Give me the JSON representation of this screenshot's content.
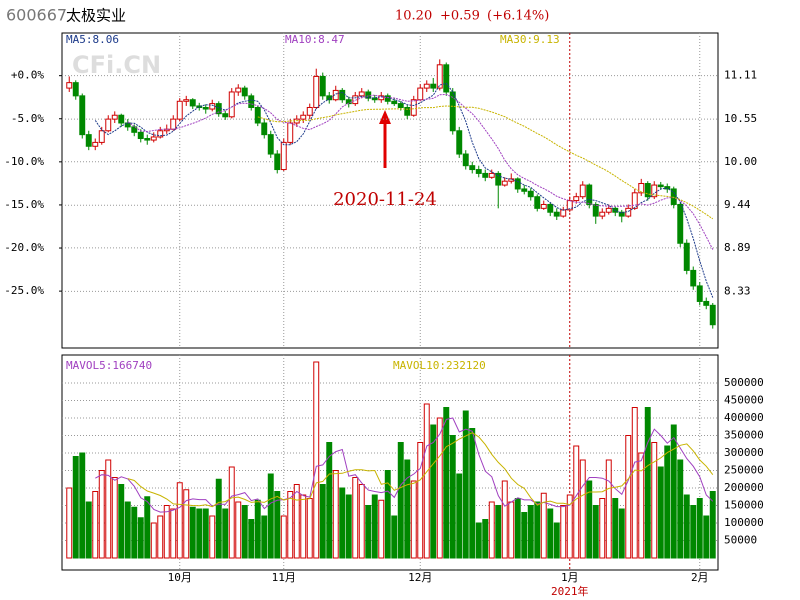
{
  "chart_data": {
    "type": "candlestick",
    "header": {
      "code": "600667",
      "name": "太极实业",
      "price": "10.20",
      "change": "+0.59",
      "change_pct": "(+6.14%)"
    },
    "watermark": "CFi.CN",
    "annotation": "2020-11-24",
    "year_label": "2021年",
    "ma_labels": [
      {
        "text": "MA5:8.06",
        "color": "#1c3a8a"
      },
      {
        "text": "MA10:8.47",
        "color": "#a040c0"
      },
      {
        "text": "MA30:9.13",
        "color": "#c8b400"
      }
    ],
    "up_color": "#d00000",
    "down_color": "#008800",
    "categories": [
      null,
      null,
      null,
      null,
      null,
      null,
      null,
      null,
      null,
      null,
      null,
      null,
      null,
      null,
      null,
      null,
      null,
      "10月",
      null,
      null,
      null,
      null,
      null,
      null,
      null,
      null,
      null,
      null,
      null,
      null,
      null,
      null,
      null,
      "11月",
      null,
      null,
      null,
      null,
      null,
      null,
      null,
      null,
      null,
      null,
      null,
      null,
      null,
      null,
      null,
      null,
      null,
      null,
      null,
      null,
      "12月",
      null,
      null,
      null,
      null,
      null,
      null,
      null,
      null,
      null,
      null,
      null,
      null,
      null,
      null,
      null,
      null,
      null,
      null,
      null,
      null,
      null,
      null,
      "1月",
      null,
      null,
      null,
      null,
      null,
      null,
      null,
      null,
      null,
      null,
      null,
      null,
      null,
      null,
      null,
      null,
      null,
      null,
      null,
      "2月",
      null,
      null
    ],
    "ohlc": [
      [
        10.95,
        11.1,
        10.9,
        11.02
      ],
      [
        11.02,
        11.05,
        10.8,
        10.85
      ],
      [
        10.85,
        10.88,
        10.3,
        10.35
      ],
      [
        10.35,
        10.4,
        10.15,
        10.2
      ],
      [
        10.2,
        10.3,
        10.15,
        10.25
      ],
      [
        10.25,
        10.45,
        10.22,
        10.4
      ],
      [
        10.4,
        10.6,
        10.38,
        10.55
      ],
      [
        10.55,
        10.65,
        10.5,
        10.6
      ],
      [
        10.6,
        10.62,
        10.45,
        10.5
      ],
      [
        10.5,
        10.55,
        10.4,
        10.45
      ],
      [
        10.45,
        10.48,
        10.33,
        10.38
      ],
      [
        10.38,
        10.42,
        10.25,
        10.3
      ],
      [
        10.3,
        10.35,
        10.22,
        10.28
      ],
      [
        10.28,
        10.38,
        10.25,
        10.32
      ],
      [
        10.32,
        10.45,
        10.3,
        10.4
      ],
      [
        10.4,
        10.48,
        10.36,
        10.42
      ],
      [
        10.42,
        10.6,
        10.4,
        10.55
      ],
      [
        10.55,
        10.82,
        10.52,
        10.78
      ],
      [
        10.78,
        10.85,
        10.72,
        10.8
      ],
      [
        10.8,
        10.82,
        10.68,
        10.72
      ],
      [
        10.72,
        10.76,
        10.66,
        10.7
      ],
      [
        10.7,
        10.74,
        10.62,
        10.68
      ],
      [
        10.68,
        10.8,
        10.65,
        10.75
      ],
      [
        10.75,
        10.78,
        10.58,
        10.62
      ],
      [
        10.62,
        10.66,
        10.54,
        10.58
      ],
      [
        10.58,
        10.95,
        10.56,
        10.9
      ],
      [
        10.9,
        11.0,
        10.85,
        10.95
      ],
      [
        10.95,
        10.98,
        10.8,
        10.85
      ],
      [
        10.85,
        10.88,
        10.66,
        10.7
      ],
      [
        10.7,
        10.72,
        10.46,
        10.5
      ],
      [
        10.5,
        10.55,
        10.3,
        10.35
      ],
      [
        10.35,
        10.4,
        10.05,
        10.1
      ],
      [
        10.1,
        10.15,
        9.85,
        9.9
      ],
      [
        9.9,
        10.3,
        9.88,
        10.25
      ],
      [
        10.25,
        10.55,
        10.22,
        10.5
      ],
      [
        10.5,
        10.6,
        10.45,
        10.55
      ],
      [
        10.55,
        10.65,
        10.5,
        10.6
      ],
      [
        10.6,
        10.75,
        10.55,
        10.7
      ],
      [
        10.7,
        11.2,
        10.68,
        11.1
      ],
      [
        11.1,
        11.15,
        10.8,
        10.85
      ],
      [
        10.85,
        10.9,
        10.75,
        10.8
      ],
      [
        10.8,
        10.98,
        10.78,
        10.92
      ],
      [
        10.92,
        10.95,
        10.76,
        10.8
      ],
      [
        10.8,
        10.84,
        10.7,
        10.75
      ],
      [
        10.75,
        10.9,
        10.72,
        10.85
      ],
      [
        10.85,
        10.95,
        10.82,
        10.9
      ],
      [
        10.9,
        10.93,
        10.78,
        10.82
      ],
      [
        10.82,
        10.86,
        10.76,
        10.8
      ],
      [
        10.8,
        10.9,
        10.76,
        10.85
      ],
      [
        10.85,
        10.88,
        10.74,
        10.78
      ],
      [
        10.78,
        10.82,
        10.72,
        10.75
      ],
      [
        10.75,
        10.78,
        10.66,
        10.7
      ],
      [
        10.7,
        10.74,
        10.55,
        10.6
      ],
      [
        10.6,
        10.85,
        10.58,
        10.8
      ],
      [
        10.8,
        11.0,
        10.78,
        10.95
      ],
      [
        10.95,
        11.05,
        10.9,
        11.0
      ],
      [
        11.0,
        11.08,
        10.9,
        10.95
      ],
      [
        10.95,
        11.32,
        10.92,
        11.25
      ],
      [
        11.25,
        11.28,
        10.85,
        10.9
      ],
      [
        10.9,
        10.95,
        10.35,
        10.4
      ],
      [
        10.4,
        10.45,
        10.05,
        10.1
      ],
      [
        10.1,
        10.15,
        9.9,
        9.95
      ],
      [
        9.95,
        10.0,
        9.85,
        9.9
      ],
      [
        9.9,
        9.95,
        9.8,
        9.85
      ],
      [
        9.85,
        9.9,
        9.75,
        9.8
      ],
      [
        9.8,
        9.9,
        9.78,
        9.85
      ],
      [
        9.85,
        9.88,
        9.4,
        9.7
      ],
      [
        9.7,
        9.8,
        9.68,
        9.75
      ],
      [
        9.75,
        9.85,
        9.72,
        9.78
      ],
      [
        9.78,
        9.8,
        9.6,
        9.65
      ],
      [
        9.65,
        9.7,
        9.58,
        9.62
      ],
      [
        9.62,
        9.66,
        9.5,
        9.55
      ],
      [
        9.55,
        9.58,
        9.36,
        9.4
      ],
      [
        9.4,
        9.5,
        9.38,
        9.45
      ],
      [
        9.45,
        9.48,
        9.3,
        9.35
      ],
      [
        9.35,
        9.4,
        9.25,
        9.3
      ],
      [
        9.3,
        9.42,
        9.28,
        9.38
      ],
      [
        9.38,
        9.55,
        9.35,
        9.5
      ],
      [
        9.5,
        9.6,
        9.46,
        9.55
      ],
      [
        9.55,
        9.75,
        9.52,
        9.7
      ],
      [
        9.7,
        9.72,
        9.4,
        9.45
      ],
      [
        9.45,
        9.48,
        9.2,
        9.3
      ],
      [
        9.3,
        9.4,
        9.26,
        9.35
      ],
      [
        9.35,
        9.45,
        9.32,
        9.4
      ],
      [
        9.4,
        9.42,
        9.3,
        9.35
      ],
      [
        9.35,
        9.38,
        9.22,
        9.3
      ],
      [
        9.3,
        9.45,
        9.28,
        9.4
      ],
      [
        9.4,
        9.65,
        9.38,
        9.6
      ],
      [
        9.6,
        9.78,
        9.56,
        9.72
      ],
      [
        9.72,
        9.75,
        9.5,
        9.55
      ],
      [
        9.55,
        9.75,
        9.52,
        9.7
      ],
      [
        9.7,
        9.74,
        9.64,
        9.68
      ],
      [
        9.68,
        9.72,
        9.6,
        9.65
      ],
      [
        9.65,
        9.68,
        9.4,
        9.45
      ],
      [
        9.45,
        9.48,
        8.9,
        8.95
      ],
      [
        8.95,
        9.0,
        8.55,
        8.6
      ],
      [
        8.6,
        8.65,
        8.35,
        8.4
      ],
      [
        8.4,
        8.45,
        8.15,
        8.2
      ],
      [
        8.2,
        8.25,
        8.1,
        8.15
      ],
      [
        8.15,
        8.18,
        7.85,
        7.9
      ]
    ],
    "ylim": [
      7.6,
      11.66
    ],
    "yticks": [
      11.11,
      10.55,
      {
        "value": 10,
        "label": "10.00"
      },
      9.44,
      8.89,
      8.33
    ],
    "y2lim": [
      -31.6,
      4.95
    ],
    "y2ticks": [
      {
        "value": 0,
        "label": "+0.0%"
      },
      {
        "value": -5,
        "label": "-5.0%"
      },
      {
        "value": -10,
        "label": "-10.0%"
      },
      {
        "value": -15,
        "label": "-15.0%"
      },
      {
        "value": -20,
        "label": "-20.0%"
      },
      {
        "value": -25,
        "label": "-25.0%"
      }
    ],
    "volume": {
      "ma_labels": [
        {
          "text": "MAVOL5:166740",
          "color": "#a040c0"
        },
        {
          "text": "MAVOL10:232120",
          "color": "#c8b400"
        }
      ],
      "values": [
        200000,
        290000,
        300000,
        160000,
        190000,
        250000,
        280000,
        230000,
        210000,
        160000,
        145000,
        115000,
        175000,
        100000,
        120000,
        150000,
        140000,
        215000,
        195000,
        145000,
        140000,
        140000,
        120000,
        225000,
        140000,
        260000,
        160000,
        150000,
        110000,
        165000,
        120000,
        240000,
        190000,
        120000,
        190000,
        210000,
        180000,
        170000,
        560000,
        210000,
        330000,
        250000,
        200000,
        180000,
        230000,
        210000,
        150000,
        180000,
        165000,
        250000,
        120000,
        330000,
        280000,
        220000,
        330000,
        440000,
        380000,
        400000,
        430000,
        350000,
        240000,
        420000,
        370000,
        100000,
        110000,
        160000,
        150000,
        220000,
        160000,
        170000,
        130000,
        150000,
        160000,
        185000,
        140000,
        100000,
        150000,
        180000,
        320000,
        280000,
        220000,
        150000,
        170000,
        280000,
        170000,
        140000,
        350000,
        430000,
        300000,
        430000,
        330000,
        260000,
        320000,
        380000,
        280000,
        180000,
        150000,
        170000,
        120000,
        190000
      ],
      "ylim": [
        0,
        580000
      ],
      "yticks": [
        50000,
        100000,
        150000,
        200000,
        250000,
        300000,
        350000,
        400000,
        450000,
        500000
      ]
    }
  }
}
